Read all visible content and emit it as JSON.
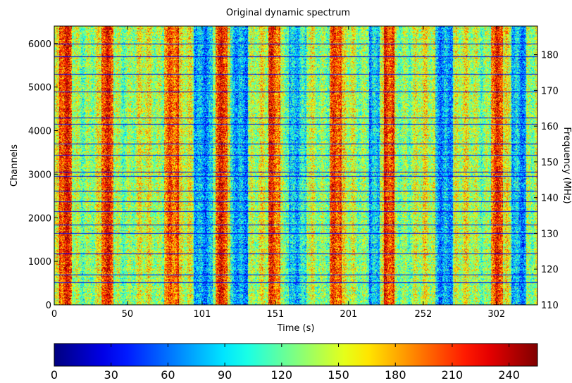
{
  "chart_data": {
    "type": "heatmap",
    "title": "Original dynamic spectrum",
    "xlabel": "Time (s)",
    "ylabel": "Channels",
    "y2label": "Frequency (MHz)",
    "xticks": [
      "0",
      "50",
      "101",
      "151",
      "201",
      "252",
      "302"
    ],
    "xtick_values": [
      0,
      50,
      101,
      151,
      201,
      252,
      302
    ],
    "xlim": [
      0,
      330
    ],
    "yticks": [
      "0",
      "1000",
      "2000",
      "3000",
      "4000",
      "5000",
      "6000"
    ],
    "ytick_values": [
      0,
      1000,
      2000,
      3000,
      4000,
      5000,
      6000
    ],
    "ylim": [
      0,
      6400
    ],
    "y2ticks": [
      "110",
      "120",
      "130",
      "140",
      "150",
      "160",
      "170",
      "180"
    ],
    "y2tick_values": [
      110,
      120,
      130,
      140,
      150,
      160,
      170,
      180
    ],
    "y2lim": [
      110,
      188
    ],
    "colorbar": {
      "colormap": "jet",
      "orientation": "horizontal",
      "range": [
        0,
        255
      ],
      "ticks": [
        "0",
        "30",
        "60",
        "90",
        "120",
        "150",
        "180",
        "210",
        "240"
      ],
      "tick_values": [
        0,
        30,
        60,
        90,
        120,
        150,
        180,
        210,
        240
      ]
    },
    "high_intensity_time_bands_s": [
      [
        3,
        12
      ],
      [
        32,
        40
      ],
      [
        75,
        85
      ],
      [
        110,
        118
      ],
      [
        146,
        154
      ],
      [
        188,
        196
      ],
      [
        225,
        232
      ],
      [
        298,
        306
      ]
    ],
    "low_intensity_time_bands_s": [
      [
        95,
        108
      ],
      [
        120,
        132
      ],
      [
        160,
        172
      ],
      [
        215,
        222
      ],
      [
        260,
        272
      ],
      [
        312,
        322
      ]
    ],
    "dark_horizontal_channel_lines": [
      520,
      700,
      1180,
      1650,
      1850,
      2150,
      2380,
      2620,
      2950,
      3050,
      3450,
      3700,
      4150,
      4300,
      4900,
      5300,
      5700,
      6000
    ]
  }
}
